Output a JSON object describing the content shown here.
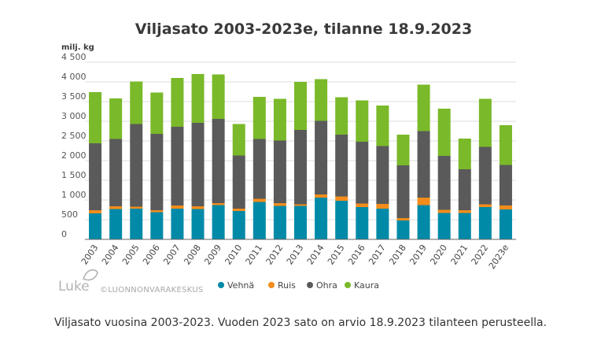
{
  "chart_data": {
    "type": "bar",
    "stacked": true,
    "title": "Viljasato 2003-2023e, tilanne 18.9.2023",
    "ylabel": "milj. kg",
    "ylim": [
      0,
      4500
    ],
    "yticks": [
      0,
      500,
      1000,
      1500,
      2000,
      2500,
      3000,
      3500,
      4000,
      4500
    ],
    "ytick_labels": [
      "0",
      "500",
      "1 000",
      "1 500",
      "2 000",
      "2 500",
      "3 000",
      "3 500",
      "4 000",
      "4 500"
    ],
    "categories": [
      "2003",
      "2004",
      "2005",
      "2006",
      "2007",
      "2008",
      "2009",
      "2010",
      "2011",
      "2012",
      "2013",
      "2014",
      "2015",
      "2016",
      "2017",
      "2018",
      "2019",
      "2020",
      "2021",
      "2022",
      "2023e"
    ],
    "series": [
      {
        "name": "Vehnä",
        "color": "#008aa8",
        "values": [
          660,
          770,
          780,
          690,
          780,
          770,
          870,
          720,
          950,
          850,
          850,
          1060,
          980,
          820,
          780,
          480,
          870,
          670,
          670,
          820,
          760
        ]
      },
      {
        "name": "Ruis",
        "color": "#f28c1b",
        "values": [
          80,
          70,
          50,
          50,
          80,
          70,
          50,
          60,
          80,
          70,
          40,
          80,
          110,
          90,
          120,
          60,
          190,
          80,
          70,
          70,
          100
        ]
      },
      {
        "name": "Ohra",
        "color": "#5a5a5a",
        "values": [
          1700,
          1710,
          2100,
          1940,
          2000,
          2120,
          2140,
          1350,
          1520,
          1590,
          1890,
          1870,
          1570,
          1570,
          1470,
          1340,
          1690,
          1370,
          1040,
          1460,
          1030
        ]
      },
      {
        "name": "Kaura",
        "color": "#7ab929",
        "values": [
          1300,
          1030,
          1080,
          1050,
          1240,
          1240,
          1130,
          800,
          1070,
          1060,
          1220,
          1060,
          950,
          1050,
          1030,
          780,
          1180,
          1200,
          780,
          1220,
          1010
        ]
      }
    ],
    "legend": "bottom-center"
  },
  "branding": {
    "logo": "Luke",
    "copyright": "©LUONNONVARAKESKUS"
  },
  "caption": "Viljasato vuosina 2003-2023. Vuoden 2023 sato on arvio 18.9.2023 tilanteen perusteella."
}
